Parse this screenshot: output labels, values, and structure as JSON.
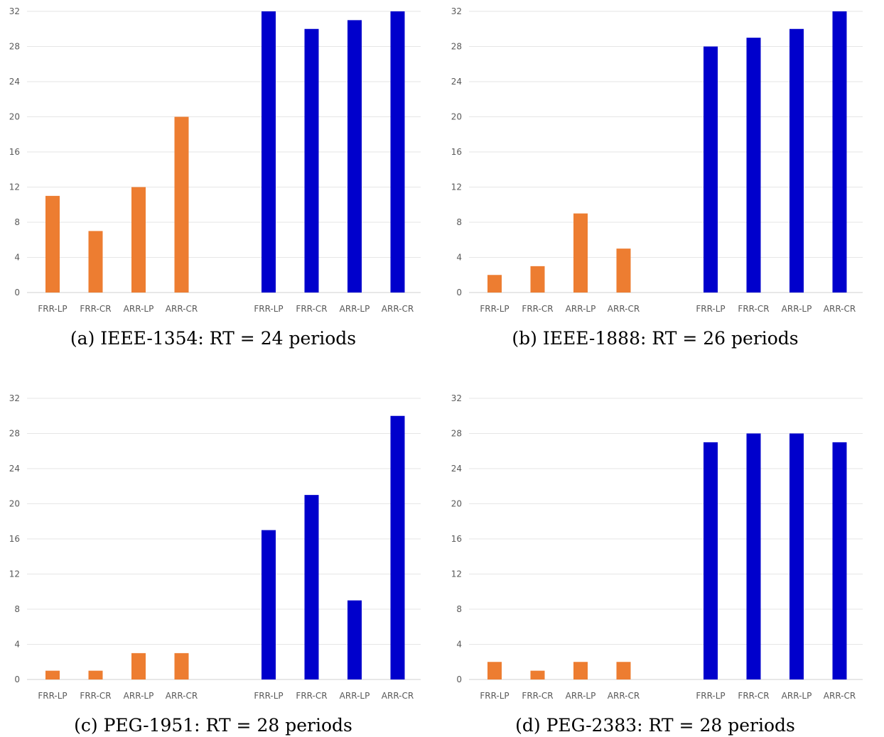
{
  "chart_data": [
    {
      "type": "bar",
      "caption": "(a) IEEE-1354: RT = 24 periods",
      "categories": [
        "FRR-LP",
        "FRR-CR",
        "ARR-LP",
        "ARR-CR",
        "FRR-LP",
        "FRR-CR",
        "ARR-LP",
        "ARR-CR"
      ],
      "groups": [
        {
          "color": "#ED7D31",
          "values": [
            11,
            7,
            12,
            20
          ]
        },
        {
          "color": "#0000CC",
          "values": [
            32,
            30,
            31,
            32
          ]
        }
      ],
      "ylim": [
        0,
        32
      ],
      "yticks": [
        0,
        4,
        8,
        12,
        16,
        20,
        24,
        28,
        32
      ],
      "grid": true
    },
    {
      "type": "bar",
      "caption": "(b) IEEE-1888: RT = 26 periods",
      "categories": [
        "FRR-LP",
        "FRR-CR",
        "ARR-LP",
        "ARR-CR",
        "FRR-LP",
        "FRR-CR",
        "ARR-LP",
        "ARR-CR"
      ],
      "groups": [
        {
          "color": "#ED7D31",
          "values": [
            2,
            3,
            9,
            5
          ]
        },
        {
          "color": "#0000CC",
          "values": [
            28,
            29,
            30,
            32
          ]
        }
      ],
      "ylim": [
        0,
        32
      ],
      "yticks": [
        0,
        4,
        8,
        12,
        16,
        20,
        24,
        28,
        32
      ],
      "grid": true
    },
    {
      "type": "bar",
      "caption": "(c) PEG-1951: RT = 28 periods",
      "categories": [
        "FRR-LP",
        "FRR-CR",
        "ARR-LP",
        "ARR-CR",
        "FRR-LP",
        "FRR-CR",
        "ARR-LP",
        "ARR-CR"
      ],
      "groups": [
        {
          "color": "#ED7D31",
          "values": [
            1,
            1,
            3,
            3
          ]
        },
        {
          "color": "#0000CC",
          "values": [
            17,
            21,
            9,
            30
          ]
        }
      ],
      "ylim": [
        0,
        32
      ],
      "yticks": [
        0,
        4,
        8,
        12,
        16,
        20,
        24,
        28,
        32
      ],
      "grid": true
    },
    {
      "type": "bar",
      "caption": "(d) PEG-2383: RT = 28 periods",
      "categories": [
        "FRR-LP",
        "FRR-CR",
        "ARR-LP",
        "ARR-CR",
        "FRR-LP",
        "FRR-CR",
        "ARR-LP",
        "ARR-CR"
      ],
      "groups": [
        {
          "color": "#ED7D31",
          "values": [
            2,
            1,
            2,
            2
          ]
        },
        {
          "color": "#0000CC",
          "values": [
            27,
            28,
            28,
            27
          ]
        }
      ],
      "ylim": [
        0,
        32
      ],
      "yticks": [
        0,
        4,
        8,
        12,
        16,
        20,
        24,
        28,
        32
      ],
      "grid": true
    }
  ]
}
